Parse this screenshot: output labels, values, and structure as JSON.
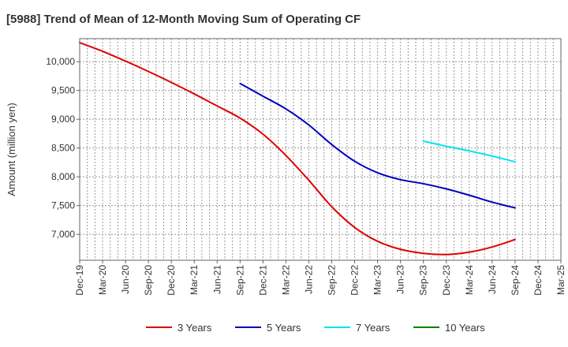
{
  "chart_data": {
    "type": "line",
    "title": "[5988]  Trend of Mean of 12-Month Moving Sum of Operating CF",
    "xlabel": "",
    "ylabel": "Amount (million yen)",
    "ylim": [
      6550,
      10400
    ],
    "yticks": [
      7000,
      7500,
      8000,
      8500,
      9000,
      9500,
      10000
    ],
    "ytick_labels": [
      "7,000",
      "7,500",
      "8,000",
      "8,500",
      "9,000",
      "9,500",
      "10,000"
    ],
    "x_months": [
      "Dec-19",
      "Jan-20",
      "Feb-20",
      "Mar-20",
      "Apr-20",
      "May-20",
      "Jun-20",
      "Jul-20",
      "Aug-20",
      "Sep-20",
      "Oct-20",
      "Nov-20",
      "Dec-20",
      "Jan-21",
      "Feb-21",
      "Mar-21",
      "Apr-21",
      "May-21",
      "Jun-21",
      "Jul-21",
      "Aug-21",
      "Sep-21",
      "Oct-21",
      "Nov-21",
      "Dec-21",
      "Jan-22",
      "Feb-22",
      "Mar-22",
      "Apr-22",
      "May-22",
      "Jun-22",
      "Jul-22",
      "Aug-22",
      "Sep-22",
      "Oct-22",
      "Nov-22",
      "Dec-22",
      "Jan-23",
      "Feb-23",
      "Mar-23",
      "Apr-23",
      "May-23",
      "Jun-23",
      "Jul-23",
      "Aug-23",
      "Sep-23",
      "Oct-23",
      "Nov-23",
      "Dec-23",
      "Jan-24",
      "Feb-24",
      "Mar-24",
      "Apr-24",
      "May-24",
      "Jun-24",
      "Jul-24",
      "Aug-24",
      "Sep-24",
      "Oct-24",
      "Nov-24",
      "Dec-24",
      "Jan-25",
      "Feb-25",
      "Mar-25"
    ],
    "x_tick_labels": [
      "Dec-19",
      "Mar-20",
      "Jun-20",
      "Sep-20",
      "Dec-20",
      "Mar-21",
      "Jun-21",
      "Sep-21",
      "Dec-21",
      "Mar-22",
      "Jun-22",
      "Sep-22",
      "Dec-22",
      "Mar-23",
      "Jun-23",
      "Sep-23",
      "Dec-23",
      "Mar-24",
      "Jun-24",
      "Sep-24",
      "Dec-24",
      "Mar-25"
    ],
    "grid": true,
    "legend_position": "bottom",
    "series": [
      {
        "name": "3 Years",
        "color": "#e00000",
        "points": [
          [
            "Dec-19",
            10330
          ],
          [
            "Mar-20",
            10180
          ],
          [
            "Jun-20",
            10010
          ],
          [
            "Sep-20",
            9830
          ],
          [
            "Dec-20",
            9640
          ],
          [
            "Mar-21",
            9440
          ],
          [
            "Jun-21",
            9230
          ],
          [
            "Sep-21",
            9020
          ],
          [
            "Dec-21",
            8740
          ],
          [
            "Mar-22",
            8370
          ],
          [
            "Jun-22",
            7940
          ],
          [
            "Sep-22",
            7480
          ],
          [
            "Dec-22",
            7120
          ],
          [
            "Mar-23",
            6880
          ],
          [
            "Jun-23",
            6740
          ],
          [
            "Sep-23",
            6670
          ],
          [
            "Dec-23",
            6650
          ],
          [
            "Mar-24",
            6690
          ],
          [
            "Jun-24",
            6780
          ],
          [
            "Sep-24",
            6910
          ]
        ]
      },
      {
        "name": "5 Years",
        "color": "#0000c0",
        "points": [
          [
            "Sep-21",
            9620
          ],
          [
            "Dec-21",
            9400
          ],
          [
            "Mar-22",
            9180
          ],
          [
            "Jun-22",
            8900
          ],
          [
            "Sep-22",
            8560
          ],
          [
            "Dec-22",
            8270
          ],
          [
            "Mar-23",
            8070
          ],
          [
            "Jun-23",
            7950
          ],
          [
            "Sep-23",
            7880
          ],
          [
            "Dec-23",
            7790
          ],
          [
            "Mar-24",
            7680
          ],
          [
            "Jun-24",
            7560
          ],
          [
            "Sep-24",
            7460
          ]
        ]
      },
      {
        "name": "7 Years",
        "color": "#00e5ee",
        "points": [
          [
            "Sep-23",
            8620
          ],
          [
            "Dec-23",
            8530
          ],
          [
            "Mar-24",
            8450
          ],
          [
            "Jun-24",
            8360
          ],
          [
            "Sep-24",
            8260
          ]
        ]
      },
      {
        "name": "10 Years",
        "color": "#008000",
        "points": []
      }
    ]
  }
}
